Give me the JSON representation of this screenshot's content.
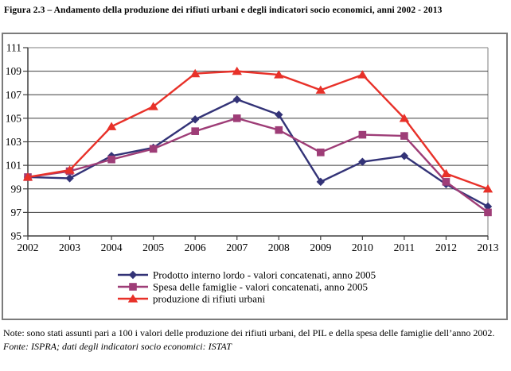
{
  "figure": {
    "title": "Figura 2.3 – Andamento della produzione dei rifiuti urbani e degli indicatori socio economici, anni 2002 - 2013"
  },
  "chart_data": {
    "type": "line",
    "title": "Figura 2.3 – Andamento della produzione dei rifiuti urbani e degli indicatori socio economici, anni 2002 - 2013",
    "x": [
      "2002",
      "2003",
      "2004",
      "2005",
      "2006",
      "2007",
      "2008",
      "2009",
      "2010",
      "2011",
      "2012",
      "2013"
    ],
    "series": [
      {
        "name": "Prodotto interno lordo - valori concatenati, anno 2005",
        "marker": "diamond",
        "color": "#333377",
        "values": [
          100.0,
          99.9,
          101.8,
          102.5,
          104.9,
          106.6,
          105.3,
          99.6,
          101.3,
          101.8,
          99.4,
          97.5
        ]
      },
      {
        "name": "Spesa delle famiglie - valori concatenati, anno 2005",
        "marker": "square",
        "color": "#9e3d77",
        "values": [
          100.0,
          100.5,
          101.5,
          102.4,
          103.9,
          105.0,
          104.0,
          102.1,
          103.6,
          103.5,
          99.6,
          97.0
        ]
      },
      {
        "name": "produzione di rifiuti urbani",
        "marker": "triangle",
        "color": "#e83129",
        "values": [
          100.0,
          100.6,
          104.3,
          106.0,
          108.8,
          109.0,
          108.7,
          107.4,
          108.7,
          105.0,
          100.3,
          99.0
        ]
      }
    ],
    "xlabel": "",
    "ylabel": "",
    "ylim": [
      95,
      111
    ],
    "ytick_step": 2,
    "grid": true,
    "legend_position": "bottom-inside",
    "grid_color": "#3f3f3f",
    "plot_border_color": "#a8a8a8"
  },
  "notes": {
    "note": "Note: sono stati assunti pari a 100 i valori delle produzione dei rifiuti urbani, del PIL e della spesa delle famiglie dell’anno 2002.",
    "fonte": "Fonte: ISPRA; dati degli indicatori socio economici: ISTAT"
  }
}
